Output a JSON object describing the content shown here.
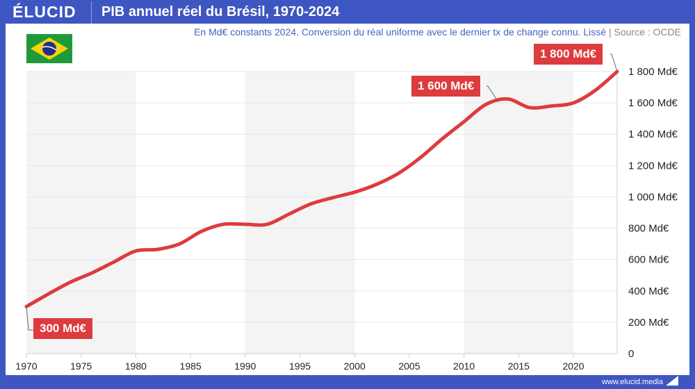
{
  "header": {
    "logo": "ÉLUCID",
    "title": "PIB annuel réel du Brésil, 1970-2024"
  },
  "subtitle": {
    "text": "En Md€ constants 2024. Conversion du réal uniforme avec le dernier tx de change connu. Lissé",
    "separator": "|",
    "source": "Source : OCDE"
  },
  "footer": {
    "url": "www.elucid.media"
  },
  "flag": {
    "country": "Brazil",
    "colors": {
      "green": "#1e9a3a",
      "yellow": "#f7d20f",
      "blue": "#1f2f86"
    }
  },
  "chart_data": {
    "type": "line",
    "title": "PIB annuel réel du Brésil, 1970-2024",
    "xlabel": "",
    "ylabel": "",
    "xlim": [
      1970,
      2024
    ],
    "ylim": [
      0,
      1800
    ],
    "x_ticks": [
      "1970",
      "1975",
      "1980",
      "1985",
      "1990",
      "1995",
      "2000",
      "2005",
      "2010",
      "2015",
      "2020"
    ],
    "y_ticks": [
      "0",
      "200 Md€",
      "400 Md€",
      "600 Md€",
      "800 Md€",
      "1 000 Md€",
      "1 200 Md€",
      "1 400 Md€",
      "1 600 Md€",
      "1 800 Md€"
    ],
    "grid": true,
    "line_color": "#dd3b3e",
    "shaded_decades": [
      [
        1970,
        1980
      ],
      [
        1990,
        2000
      ],
      [
        2010,
        2020
      ]
    ],
    "x": [
      1970,
      1972,
      1974,
      1976,
      1978,
      1980,
      1982,
      1984,
      1986,
      1988,
      1990,
      1992,
      1994,
      1996,
      1998,
      2000,
      2002,
      2004,
      2006,
      2008,
      2010,
      2012,
      2014,
      2016,
      2018,
      2020,
      2022,
      2024
    ],
    "values": [
      300,
      380,
      455,
      515,
      585,
      655,
      665,
      700,
      780,
      825,
      825,
      825,
      890,
      955,
      995,
      1030,
      1080,
      1150,
      1250,
      1370,
      1480,
      1590,
      1625,
      1570,
      1580,
      1600,
      1680,
      1800
    ],
    "annotations": [
      {
        "x": 1970,
        "y": 300,
        "text": "300 Md€"
      },
      {
        "x": 2013,
        "y": 1620,
        "text": "1 600 Md€"
      },
      {
        "x": 2024,
        "y": 1800,
        "text": "1 800 Md€"
      }
    ]
  }
}
